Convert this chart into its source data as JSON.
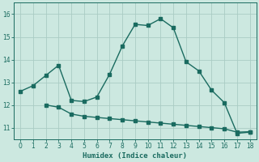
{
  "xlabel": "Humidex (Indice chaleur)",
  "bg_color": "#cce8e0",
  "grid_color": "#aaccC4",
  "line_color": "#1a6b60",
  "line1_x": [
    0,
    1,
    2,
    3,
    4,
    5,
    6,
    7,
    8,
    9,
    10,
    11,
    12,
    13,
    14,
    15,
    16,
    17,
    18
  ],
  "line1_y": [
    12.6,
    12.85,
    13.3,
    13.75,
    12.2,
    12.15,
    12.35,
    13.35,
    14.6,
    15.55,
    15.5,
    15.8,
    15.4,
    13.9,
    13.5,
    12.65,
    12.1,
    10.75,
    10.8
  ],
  "line2_x": [
    2,
    3,
    4,
    5,
    6,
    7,
    8,
    9,
    10,
    11,
    12,
    13,
    14,
    15,
    16,
    17,
    18
  ],
  "line2_y": [
    12.0,
    11.9,
    11.6,
    11.5,
    11.45,
    11.4,
    11.35,
    11.3,
    11.25,
    11.2,
    11.15,
    11.1,
    11.05,
    11.0,
    10.95,
    10.8,
    10.82
  ],
  "xlim": [
    -0.5,
    18.5
  ],
  "ylim": [
    10.5,
    16.5
  ],
  "yticks": [
    11,
    12,
    13,
    14,
    15,
    16
  ],
  "xticks": [
    0,
    1,
    2,
    3,
    4,
    5,
    6,
    7,
    8,
    9,
    10,
    11,
    12,
    13,
    14,
    15,
    16,
    17,
    18
  ]
}
